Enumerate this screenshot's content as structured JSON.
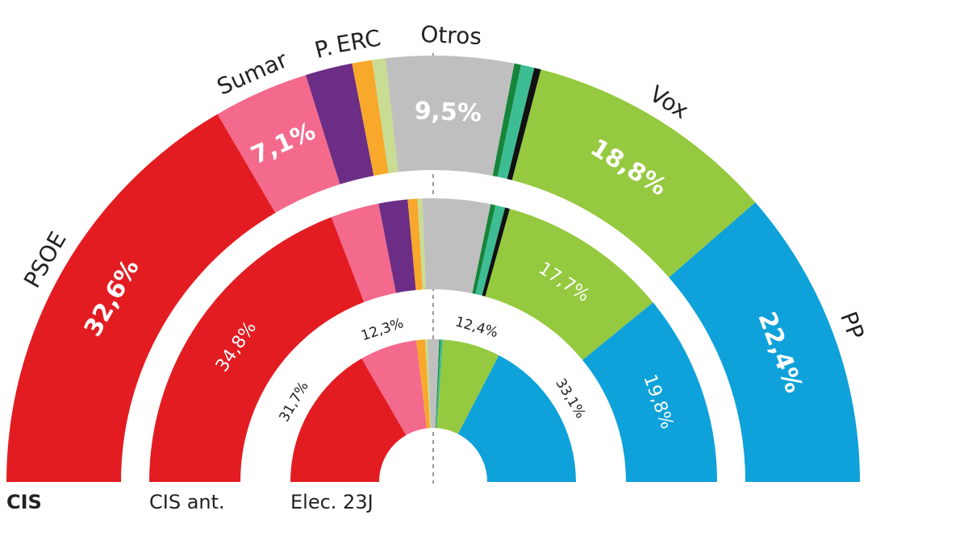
{
  "chart_data": {
    "type": "semi-donut",
    "categories": [
      "PSOE",
      "Sumar",
      "P.",
      "ERC",
      null,
      "Otros",
      null,
      null,
      null,
      "Vox",
      "PP"
    ],
    "colors": [
      "#e31c22",
      "#f36a8d",
      "#6b2d86",
      "#f8a82a",
      "#c9dc93",
      "#bfbfbf",
      "#16853a",
      "#3dbd94",
      "#111111",
      "#95c93f",
      "#0ea1da"
    ],
    "series": [
      {
        "name": "CIS",
        "values": [
          32.6,
          7.1,
          3.5,
          1.5,
          1,
          9.5,
          0.5,
          1,
          0.5,
          18.8,
          22.4
        ],
        "value_labels": [
          "32,6%",
          "7,1%",
          null,
          null,
          null,
          "9,5%",
          null,
          null,
          null,
          "18,8%",
          "22,4%"
        ]
      },
      {
        "name": "CIS ant.",
        "values": [
          34.8,
          5,
          3,
          1,
          0.5,
          7,
          0.5,
          1,
          0.5,
          17.7,
          19.8
        ],
        "value_labels": [
          "34,8%",
          null,
          null,
          null,
          null,
          null,
          null,
          null,
          null,
          "17,7%",
          "19,8%"
        ]
      },
      {
        "name": "Elec. 23J",
        "values": [
          31.7,
          12.3,
          0,
          1.9,
          0.5,
          2.5,
          0.3,
          0.5,
          0,
          12.4,
          33.1
        ],
        "value_labels": [
          "31,7%",
          "12,3%",
          null,
          null,
          null,
          null,
          null,
          null,
          null,
          "12,4%",
          "33,1%"
        ]
      }
    ]
  }
}
